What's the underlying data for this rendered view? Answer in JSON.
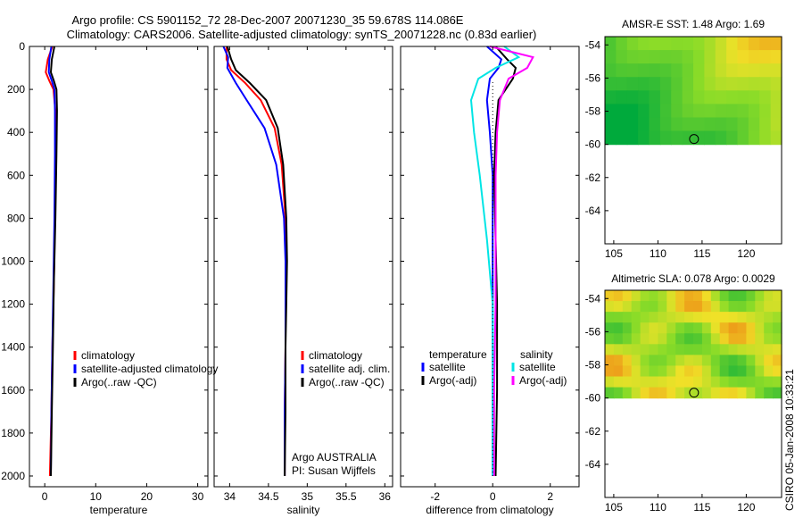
{
  "figure": {
    "title_line1": "Argo profile: CS 5901152_72 28-Dec-2007 20071230_35 59.678S 114.086E",
    "title_line2": "Climatology: CARS2006. Satellite-adjusted climatology: synTS_20071228.nc (0.83d earlier)",
    "side_note": "CSIRO 05-Jan-2008 10:33:21"
  },
  "chart_data": [
    {
      "type": "line",
      "panel": "temperature",
      "xlabel": "temperature",
      "ylabel": "",
      "xlim": [
        -3,
        32
      ],
      "ylim": [
        2050,
        0
      ],
      "xticks": [
        0,
        10,
        20,
        30
      ],
      "yticks": [
        0,
        200,
        400,
        600,
        800,
        1000,
        1200,
        1400,
        1600,
        1800,
        2000
      ],
      "legend": [
        {
          "label": "climatology",
          "color": "#ff0000"
        },
        {
          "label": "satellite-adjusted climatology",
          "color": "#0000ff"
        },
        {
          "label": "Argo(..raw -QC)",
          "color": "#000000"
        }
      ],
      "series": [
        {
          "color": "#ff0000",
          "x": [
            1.5,
            0.6,
            0.2,
            0.9,
            1.7,
            2.1,
            2.2,
            2.0,
            1.8,
            1.5,
            1.3,
            1.0
          ],
          "y": [
            0,
            60,
            120,
            160,
            200,
            300,
            500,
            800,
            1100,
            1400,
            1700,
            2000
          ]
        },
        {
          "color": "#0000ff",
          "x": [
            1.3,
            0.9,
            0.8,
            1.4,
            1.9,
            2.0,
            2.0,
            1.9,
            1.7,
            1.5,
            1.3,
            1.2
          ],
          "y": [
            0,
            60,
            120,
            160,
            200,
            300,
            500,
            800,
            1100,
            1400,
            1700,
            2000
          ]
        },
        {
          "color": "#000000",
          "x": [
            1.9,
            1.4,
            1.2,
            1.8,
            2.3,
            2.4,
            2.3,
            2.1,
            1.8,
            1.6,
            1.4,
            1.2
          ],
          "y": [
            0,
            60,
            120,
            160,
            200,
            300,
            500,
            800,
            1100,
            1400,
            1700,
            2000
          ]
        }
      ]
    },
    {
      "type": "line",
      "panel": "salinity",
      "xlabel": "salinity",
      "ylabel": "",
      "xlim": [
        33.8,
        36.1
      ],
      "ylim": [
        2050,
        0
      ],
      "xticks": [
        34,
        34.5,
        35,
        35.5,
        36
      ],
      "xtick_labels": [
        "34",
        "34.5",
        "35",
        "35.5",
        "36"
      ],
      "legend": [
        {
          "label": "climatology",
          "color": "#ff0000"
        },
        {
          "label": "satellite adj. clim.",
          "color": "#0000ff"
        },
        {
          "label": "Argo(..raw -QC)",
          "color": "#000000"
        }
      ],
      "annotations": [
        "Argo AUSTRALIA",
        "PI: Susan Wijffels"
      ],
      "series": [
        {
          "color": "#ff0000",
          "x": [
            33.96,
            33.96,
            34.02,
            34.2,
            34.4,
            34.58,
            34.67,
            34.72,
            34.73,
            34.72,
            34.72,
            34.71,
            34.71
          ],
          "y": [
            0,
            60,
            110,
            170,
            250,
            380,
            550,
            800,
            1000,
            1200,
            1400,
            1700,
            2000
          ]
        },
        {
          "color": "#0000ff",
          "x": [
            33.92,
            33.98,
            33.97,
            34.08,
            34.22,
            34.45,
            34.6,
            34.7,
            34.72,
            34.72,
            34.72,
            34.71,
            34.71
          ],
          "y": [
            0,
            50,
            100,
            170,
            250,
            380,
            550,
            800,
            1000,
            1200,
            1400,
            1700,
            2000
          ]
        },
        {
          "color": "#000000",
          "x": [
            33.97,
            34.02,
            34.08,
            34.26,
            34.47,
            34.62,
            34.69,
            34.73,
            34.74,
            34.73,
            34.72,
            34.72,
            34.71
          ],
          "y": [
            0,
            60,
            110,
            170,
            250,
            380,
            550,
            800,
            1000,
            1200,
            1400,
            1700,
            2000
          ]
        }
      ]
    },
    {
      "type": "line",
      "panel": "difference",
      "xlabel": "difference from climatology",
      "ylabel": "",
      "xlim": [
        -3.2,
        3.0
      ],
      "ylim": [
        2050,
        0
      ],
      "xticks": [
        -2,
        0,
        2
      ],
      "legend_left_heading": "temperature",
      "legend_right_heading": "salinity",
      "legend": [
        {
          "label": "satellite",
          "color": "#0000ff"
        },
        {
          "label": "Argo(-adj)",
          "color": "#000000"
        },
        {
          "label": "satellite",
          "color": "#00e5e5"
        },
        {
          "label": "Argo(-adj)",
          "color": "#ff00ff"
        }
      ],
      "series": [
        {
          "color": "#0000ff",
          "x": [
            -0.2,
            0.3,
            0.2,
            -0.1,
            -0.2,
            -0.1,
            0.0,
            0.0,
            0.0,
            0.0,
            0.0
          ],
          "y": [
            0,
            60,
            100,
            150,
            250,
            400,
            600,
            900,
            1200,
            1600,
            2000
          ]
        },
        {
          "color": "#000000",
          "x": [
            0.1,
            0.5,
            0.8,
            0.7,
            0.2,
            0.1,
            0.05,
            0.1,
            0.15,
            0.15,
            0.1
          ],
          "y": [
            0,
            60,
            100,
            150,
            250,
            400,
            600,
            900,
            1200,
            1600,
            2000
          ]
        },
        {
          "color": "#00e5e5",
          "x": [
            0.4,
            0.9,
            0.1,
            -0.5,
            -0.75,
            -0.65,
            -0.45,
            -0.2,
            0.0,
            0.0,
            0.0
          ],
          "y": [
            0,
            50,
            100,
            150,
            250,
            400,
            600,
            900,
            1200,
            1600,
            2000
          ]
        },
        {
          "color": "#ff00ff",
          "x": [
            -0.1,
            1.4,
            1.2,
            0.55,
            0.25,
            0.15,
            0.1,
            0.1,
            0.1,
            0.05,
            0.05
          ],
          "y": [
            0,
            50,
            100,
            150,
            250,
            400,
            600,
            900,
            1200,
            1600,
            2000
          ]
        }
      ]
    },
    {
      "type": "heatmap",
      "panel": "sst-map",
      "title": "AMSR-E SST: 1.48 Argo: 1.69",
      "xlim": [
        104,
        124
      ],
      "ylim": [
        -66,
        -53.5
      ],
      "xticks": [
        105,
        110,
        115,
        120
      ],
      "yticks": [
        -54,
        -56,
        -58,
        -60,
        -62,
        -64
      ],
      "data_lat_range": [
        -60,
        -53.5
      ],
      "marker": {
        "lon": 114.086,
        "lat": -59.678
      },
      "palette": "green-yellow-orange",
      "grid": {
        "cols": 16,
        "rows": 8,
        "value_range": [
          0,
          1
        ]
      }
    },
    {
      "type": "heatmap",
      "panel": "sla-map",
      "title": "Altimetric SLA: 0.078 Argo: 0.0029",
      "xlim": [
        104,
        124
      ],
      "ylim": [
        -66,
        -53.5
      ],
      "xticks": [
        105,
        110,
        115,
        120
      ],
      "yticks": [
        -54,
        -56,
        -58,
        -60,
        -62,
        -64
      ],
      "data_lat_range": [
        -60,
        -53.5
      ],
      "marker": {
        "lon": 114.086,
        "lat": -59.678
      },
      "palette": "green-yellow-orange",
      "grid": {
        "cols": 20,
        "rows": 10,
        "value_range": [
          0,
          1
        ]
      }
    }
  ]
}
